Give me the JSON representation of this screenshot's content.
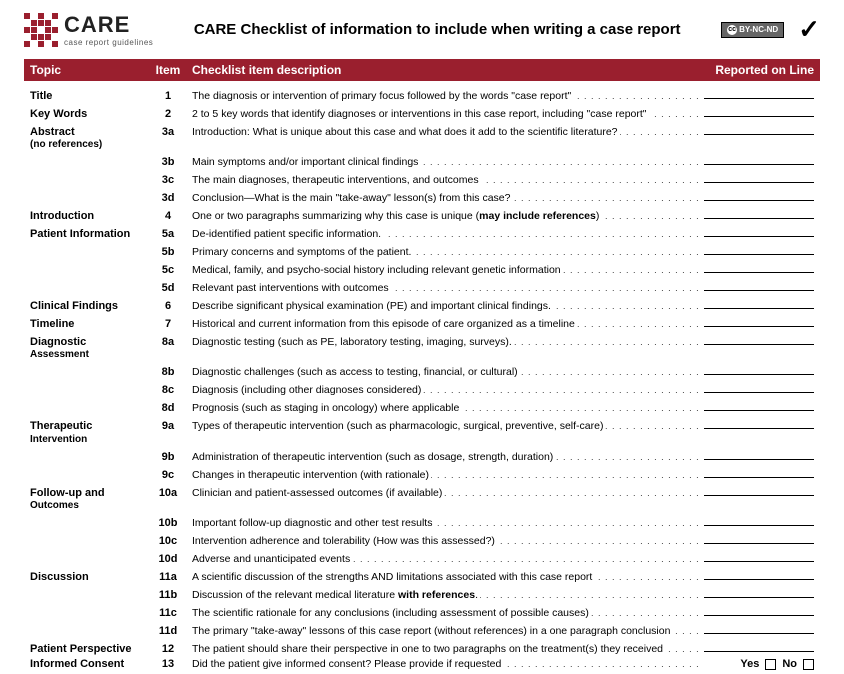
{
  "header": {
    "logo_big": "CARE",
    "logo_small": "case report guidelines",
    "title": "CARE Checklist of information to include when writing a case report",
    "cc_text": "BY-NC-ND"
  },
  "columns": {
    "topic": "Topic",
    "item": "Item",
    "desc": "Checklist item description",
    "line": "Reported on Line"
  },
  "consent": {
    "yes": "Yes",
    "no": "No"
  },
  "rows": [
    {
      "topic": "Title",
      "item": "1",
      "desc": "The diagnosis or intervention of primary focus followed by the words \"case report\""
    },
    {
      "topic": "Key Words",
      "item": "2",
      "desc": "2 to 5 key words that identify diagnoses or interventions in this case report, including \"case report\""
    },
    {
      "topic": "Abstract",
      "topic_sub": "(no references)",
      "item": "3a",
      "desc": "Introduction: What is unique about this case and what does it add to the scientific literature?"
    },
    {
      "topic": "",
      "item": "3b",
      "desc": "Main symptoms and/or important clinical findings"
    },
    {
      "topic": "",
      "item": "3c",
      "desc": "The main diagnoses, therapeutic interventions, and outcomes"
    },
    {
      "topic": "",
      "item": "3d",
      "desc": "Conclusion—What is the main \"take-away\" lesson(s) from this case?"
    },
    {
      "topic": "Introduction",
      "item": "4",
      "desc": "One or two paragraphs summarizing why this case is unique (",
      "bold": "may include references",
      "desc_after": ")"
    },
    {
      "topic": "Patient Information",
      "item": "5a",
      "desc": "De-identified patient specific information."
    },
    {
      "topic": "",
      "item": "5b",
      "desc": "Primary concerns and symptoms of the patient."
    },
    {
      "topic": "",
      "item": "5c",
      "desc": "Medical, family, and psycho-social history including relevant genetic information"
    },
    {
      "topic": "",
      "item": "5d",
      "desc": "Relevant past interventions with outcomes"
    },
    {
      "topic": "Clinical Findings",
      "item": "6",
      "desc": "Describe significant physical examination (PE) and important clinical findings."
    },
    {
      "topic": "Timeline",
      "item": "7",
      "desc": "Historical and current information from this episode of care organized as a timeline"
    },
    {
      "topic": "Diagnostic",
      "topic_sub": "Assessment",
      "item": "8a",
      "desc": "Diagnostic testing (such as PE, laboratory testing, imaging, surveys)."
    },
    {
      "topic": "",
      "item": "8b",
      "desc": "Diagnostic challenges (such as access to testing, financial, or cultural)"
    },
    {
      "topic": "",
      "item": "8c",
      "desc": "Diagnosis (including other diagnoses considered)"
    },
    {
      "topic": "",
      "item": "8d",
      "desc": "Prognosis (such as staging in oncology) where applicable"
    },
    {
      "topic": "Therapeutic",
      "topic_sub": "Intervention",
      "item": "9a",
      "desc": "Types of therapeutic intervention (such as pharmacologic, surgical, preventive, self-care)"
    },
    {
      "topic": "",
      "item": "9b",
      "desc": "Administration of therapeutic intervention (such as dosage, strength, duration)"
    },
    {
      "topic": "",
      "item": "9c",
      "desc": "Changes in therapeutic intervention (with rationale)"
    },
    {
      "topic": "Follow-up and",
      "topic_sub": "Outcomes",
      "item": "10a",
      "desc": "Clinician and patient-assessed outcomes (if available)"
    },
    {
      "topic": "",
      "item": "10b",
      "desc": "Important follow-up diagnostic and other test results"
    },
    {
      "topic": "",
      "item": "10c",
      "desc": "Intervention adherence and tolerability (How was this assessed?)"
    },
    {
      "topic": "",
      "item": "10d",
      "desc": "Adverse and unanticipated events"
    },
    {
      "topic": "Discussion",
      "item": "11a",
      "desc": "A scientific discussion of the strengths AND limitations associated with this case report"
    },
    {
      "topic": "",
      "item": "11b",
      "desc": "Discussion of the relevant medical literature ",
      "bold": "with references",
      "desc_after": "."
    },
    {
      "topic": "",
      "item": "11c",
      "desc": "The scientific rationale for any conclusions (including assessment of possible causes)"
    },
    {
      "topic": "",
      "item": "11d",
      "desc": "The primary \"take-away\" lessons of this case report (without references) in a one paragraph conclusion"
    },
    {
      "topic": "Patient Perspective",
      "item": "12",
      "desc": "The patient should share their perspective in one to two paragraphs on the treatment(s) they received"
    },
    {
      "topic": "Informed Consent",
      "item": "13",
      "desc": "Did the patient give informed consent? Please provide if requested",
      "consent": true
    }
  ]
}
